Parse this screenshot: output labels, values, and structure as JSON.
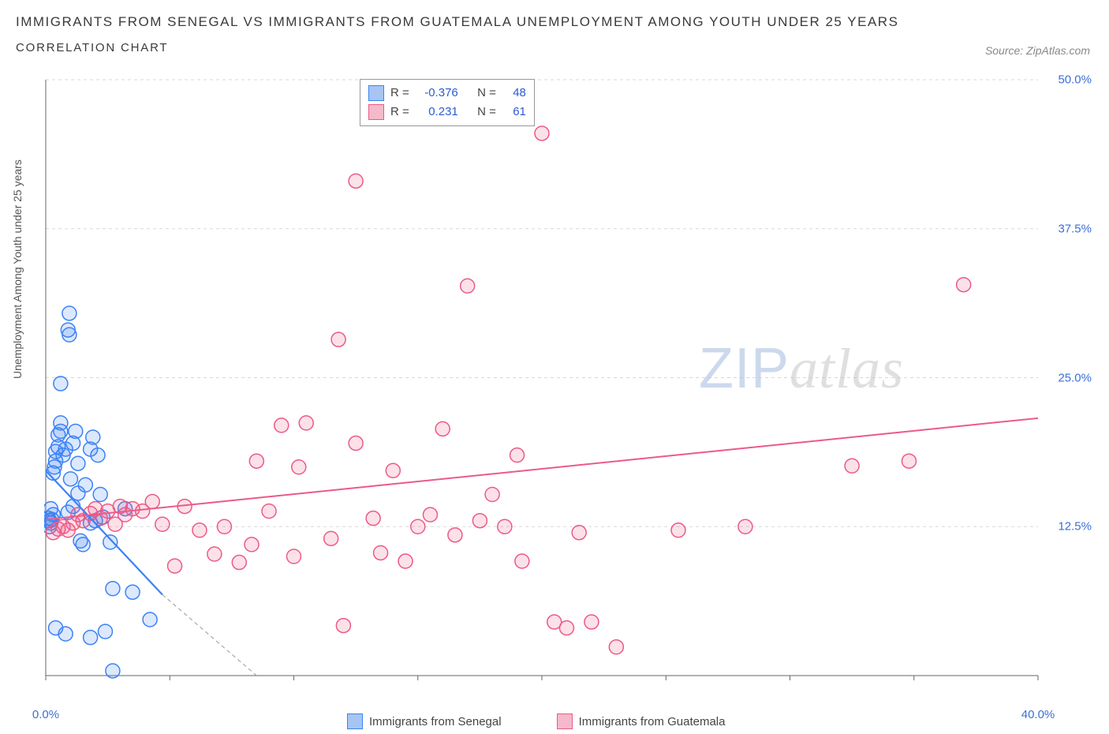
{
  "title_line1": "IMMIGRANTS FROM SENEGAL VS IMMIGRANTS FROM GUATEMALA UNEMPLOYMENT AMONG YOUTH UNDER 25 YEARS",
  "title_line2": "CORRELATION CHART",
  "source_label": "Source: ZipAtlas.com",
  "y_axis_label": "Unemployment Among Youth under 25 years",
  "watermark_zip": "ZIP",
  "watermark_atlas": "atlas",
  "chart": {
    "type": "scatter",
    "background_color": "#ffffff",
    "grid_color": "#d8d8d8",
    "grid_dash": "4 4",
    "axis_color": "#666666",
    "xlim": [
      0,
      40
    ],
    "ylim": [
      0,
      50
    ],
    "xticks": [
      0,
      5,
      10,
      15,
      20,
      25,
      30,
      35,
      40
    ],
    "xtick_labels": [
      "0.0%",
      "",
      "",
      "",
      "",
      "",
      "",
      "",
      "40.0%"
    ],
    "yticks": [
      12.5,
      25,
      37.5,
      50
    ],
    "ytick_labels": [
      "12.5%",
      "25.0%",
      "37.5%",
      "50.0%"
    ],
    "tick_label_color": "#3b6fd6",
    "tick_label_fontsize": 15,
    "marker_radius": 9,
    "marker_stroke_width": 1.5,
    "marker_fill_opacity": 0.18,
    "series": [
      {
        "name": "Immigrants from Senegal",
        "color": "#3b82f6",
        "fill": "#a6c5f2",
        "r_label": "R =",
        "r_value": "-0.376",
        "n_label": "N =",
        "n_value": "48",
        "trend": {
          "x1": 0,
          "y1": 17.2,
          "x2": 4.7,
          "y2": 6.8,
          "x_ext": 8.5,
          "y_ext": 0,
          "width": 2.2,
          "dash_ext": "5 4"
        },
        "points": [
          [
            0.1,
            13.2
          ],
          [
            0.15,
            13.0
          ],
          [
            0.15,
            12.5
          ],
          [
            0.2,
            12.8
          ],
          [
            0.25,
            13.1
          ],
          [
            0.2,
            14.0
          ],
          [
            0.3,
            13.5
          ],
          [
            0.3,
            17.0
          ],
          [
            0.35,
            17.5
          ],
          [
            0.4,
            18.0
          ],
          [
            0.4,
            18.8
          ],
          [
            0.5,
            19.2
          ],
          [
            0.5,
            20.2
          ],
          [
            0.6,
            20.5
          ],
          [
            0.6,
            21.2
          ],
          [
            0.7,
            18.5
          ],
          [
            0.8,
            19.0
          ],
          [
            0.9,
            13.7
          ],
          [
            0.6,
            24.5
          ],
          [
            0.9,
            29.0
          ],
          [
            0.95,
            30.4
          ],
          [
            0.95,
            28.6
          ],
          [
            1.0,
            16.5
          ],
          [
            1.1,
            19.5
          ],
          [
            1.2,
            20.5
          ],
          [
            1.3,
            17.8
          ],
          [
            1.4,
            11.3
          ],
          [
            1.5,
            11.0
          ],
          [
            1.6,
            16.0
          ],
          [
            1.8,
            12.8
          ],
          [
            1.8,
            19.0
          ],
          [
            1.9,
            20.0
          ],
          [
            2.0,
            13.0
          ],
          [
            2.1,
            18.5
          ],
          [
            2.2,
            15.2
          ],
          [
            2.3,
            13.3
          ],
          [
            2.6,
            11.2
          ],
          [
            2.7,
            7.3
          ],
          [
            3.2,
            14.0
          ],
          [
            3.5,
            7.0
          ],
          [
            0.4,
            4.0
          ],
          [
            0.8,
            3.5
          ],
          [
            1.8,
            3.2
          ],
          [
            2.4,
            3.7
          ],
          [
            2.7,
            0.4
          ],
          [
            4.2,
            4.7
          ],
          [
            1.1,
            14.2
          ],
          [
            1.3,
            15.3
          ]
        ]
      },
      {
        "name": "Immigrants from Guatemala",
        "color": "#ec5a87",
        "fill": "#f5b9cb",
        "r_label": "R =",
        "r_value": "0.231",
        "n_label": "N =",
        "n_value": "61",
        "trend": {
          "x1": 0,
          "y1": 13.1,
          "x2": 40,
          "y2": 21.6,
          "width": 2.0
        },
        "points": [
          [
            0.3,
            12.0
          ],
          [
            0.5,
            12.3
          ],
          [
            0.7,
            12.5
          ],
          [
            0.9,
            12.2
          ],
          [
            1.1,
            12.8
          ],
          [
            1.3,
            13.5
          ],
          [
            1.5,
            13.0
          ],
          [
            1.8,
            13.6
          ],
          [
            2.0,
            14.0
          ],
          [
            2.2,
            13.2
          ],
          [
            2.5,
            13.8
          ],
          [
            2.8,
            12.7
          ],
          [
            3.0,
            14.2
          ],
          [
            3.2,
            13.5
          ],
          [
            3.5,
            14.0
          ],
          [
            3.9,
            13.8
          ],
          [
            4.3,
            14.6
          ],
          [
            4.7,
            12.7
          ],
          [
            5.2,
            9.2
          ],
          [
            5.6,
            14.2
          ],
          [
            6.2,
            12.2
          ],
          [
            6.8,
            10.2
          ],
          [
            7.2,
            12.5
          ],
          [
            7.8,
            9.5
          ],
          [
            8.3,
            11.0
          ],
          [
            8.5,
            18.0
          ],
          [
            9.0,
            13.8
          ],
          [
            9.5,
            21.0
          ],
          [
            10.0,
            10.0
          ],
          [
            10.2,
            17.5
          ],
          [
            10.5,
            21.2
          ],
          [
            11.5,
            11.5
          ],
          [
            11.8,
            28.2
          ],
          [
            12.0,
            4.2
          ],
          [
            12.5,
            19.5
          ],
          [
            12.5,
            41.5
          ],
          [
            13.2,
            13.2
          ],
          [
            13.5,
            10.3
          ],
          [
            14.0,
            17.2
          ],
          [
            14.5,
            9.6
          ],
          [
            15.0,
            12.5
          ],
          [
            15.5,
            13.5
          ],
          [
            16.0,
            20.7
          ],
          [
            16.5,
            11.8
          ],
          [
            17.0,
            32.7
          ],
          [
            17.5,
            13.0
          ],
          [
            18.0,
            15.2
          ],
          [
            18.5,
            12.5
          ],
          [
            19.2,
            9.6
          ],
          [
            20.0,
            45.5
          ],
          [
            20.5,
            4.5
          ],
          [
            21.0,
            4.0
          ],
          [
            21.5,
            12.0
          ],
          [
            22.0,
            4.5
          ],
          [
            23.0,
            2.4
          ],
          [
            25.5,
            12.2
          ],
          [
            28.2,
            12.5
          ],
          [
            32.5,
            17.6
          ],
          [
            34.8,
            18.0
          ],
          [
            37.0,
            32.8
          ],
          [
            19.0,
            18.5
          ]
        ]
      }
    ]
  },
  "legend": {
    "series1_label": "Immigrants from Senegal",
    "series2_label": "Immigrants from Guatemala"
  }
}
